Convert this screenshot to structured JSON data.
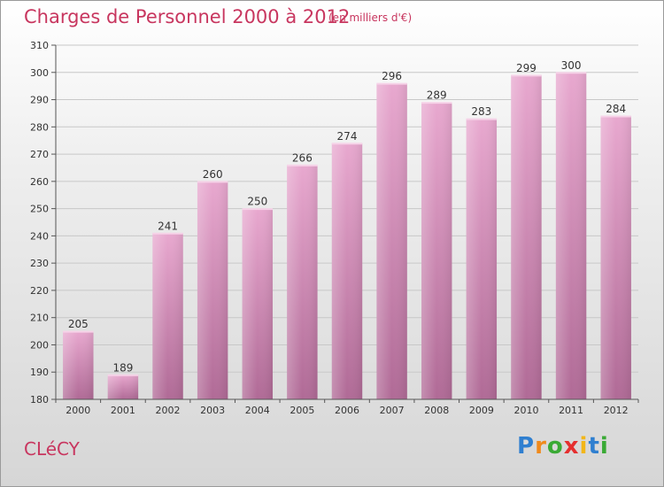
{
  "header": {
    "title": "Charges de Personnel 2000 à 2012",
    "unit": "(en milliers d'€)"
  },
  "footer": {
    "city": "CLéCY",
    "logo": [
      {
        "char": "P",
        "color": "#2f7fd0"
      },
      {
        "char": "r",
        "color": "#f08a1c"
      },
      {
        "char": "o",
        "color": "#3aaa35"
      },
      {
        "char": "x",
        "color": "#e52f2f"
      },
      {
        "char": "i",
        "color": "#f2b619"
      },
      {
        "char": "t",
        "color": "#2f7fd0"
      },
      {
        "char": "i",
        "color": "#3aaa35"
      }
    ]
  },
  "colors": {
    "bar_top": "#e8a8cf",
    "bar_bottom": "#b06a96",
    "axis_text": "#333333",
    "grid": "#c8c8c8"
  },
  "chart_data": {
    "type": "bar",
    "categories": [
      "2000",
      "2001",
      "2002",
      "2003",
      "2004",
      "2005",
      "2006",
      "2007",
      "2008",
      "2009",
      "2010",
      "2011",
      "2012"
    ],
    "values": [
      205,
      189,
      241,
      260,
      250,
      266,
      274,
      296,
      289,
      283,
      299,
      300,
      284
    ],
    "ylim": [
      180,
      310
    ],
    "yticks": [
      180,
      190,
      200,
      210,
      220,
      230,
      240,
      250,
      260,
      270,
      280,
      290,
      300,
      310
    ],
    "grid": true,
    "data_labels": true
  }
}
